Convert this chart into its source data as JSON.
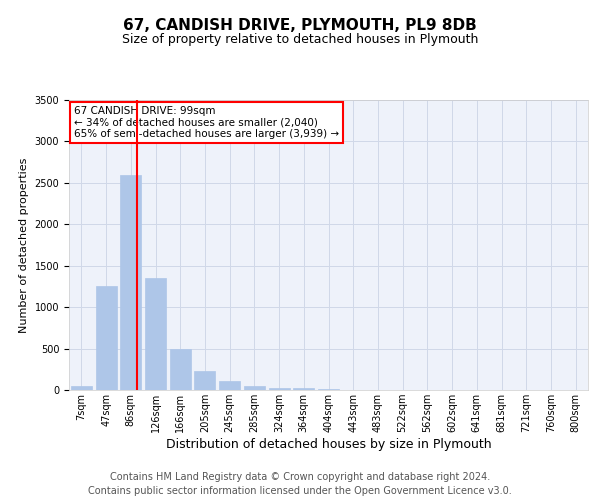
{
  "title": "67, CANDISH DRIVE, PLYMOUTH, PL9 8DB",
  "subtitle": "Size of property relative to detached houses in Plymouth",
  "xlabel": "Distribution of detached houses by size in Plymouth",
  "ylabel": "Number of detached properties",
  "bar_labels": [
    "7sqm",
    "47sqm",
    "86sqm",
    "126sqm",
    "166sqm",
    "205sqm",
    "245sqm",
    "285sqm",
    "324sqm",
    "364sqm",
    "404sqm",
    "443sqm",
    "483sqm",
    "522sqm",
    "562sqm",
    "602sqm",
    "641sqm",
    "681sqm",
    "721sqm",
    "760sqm",
    "800sqm"
  ],
  "bar_values": [
    50,
    1250,
    2600,
    1350,
    500,
    225,
    110,
    50,
    30,
    20,
    10,
    5,
    3,
    2,
    1,
    1,
    1,
    0,
    0,
    0,
    0
  ],
  "bar_color": "#aec6e8",
  "bar_edge_color": "#aec6e8",
  "grid_color": "#d0d8e8",
  "background_color": "#eef2fa",
  "red_line_x": 2.27,
  "annotation_text": "67 CANDISH DRIVE: 99sqm\n← 34% of detached houses are smaller (2,040)\n65% of semi-detached houses are larger (3,939) →",
  "annotation_box_color": "white",
  "annotation_edge_color": "red",
  "ylim": [
    0,
    3500
  ],
  "yticks": [
    0,
    500,
    1000,
    1500,
    2000,
    2500,
    3000,
    3500
  ],
  "footer1": "Contains HM Land Registry data © Crown copyright and database right 2024.",
  "footer2": "Contains public sector information licensed under the Open Government Licence v3.0.",
  "title_fontsize": 11,
  "subtitle_fontsize": 9,
  "footer_fontsize": 7,
  "ylabel_fontsize": 8,
  "xlabel_fontsize": 9,
  "tick_fontsize": 7,
  "annot_fontsize": 7.5
}
